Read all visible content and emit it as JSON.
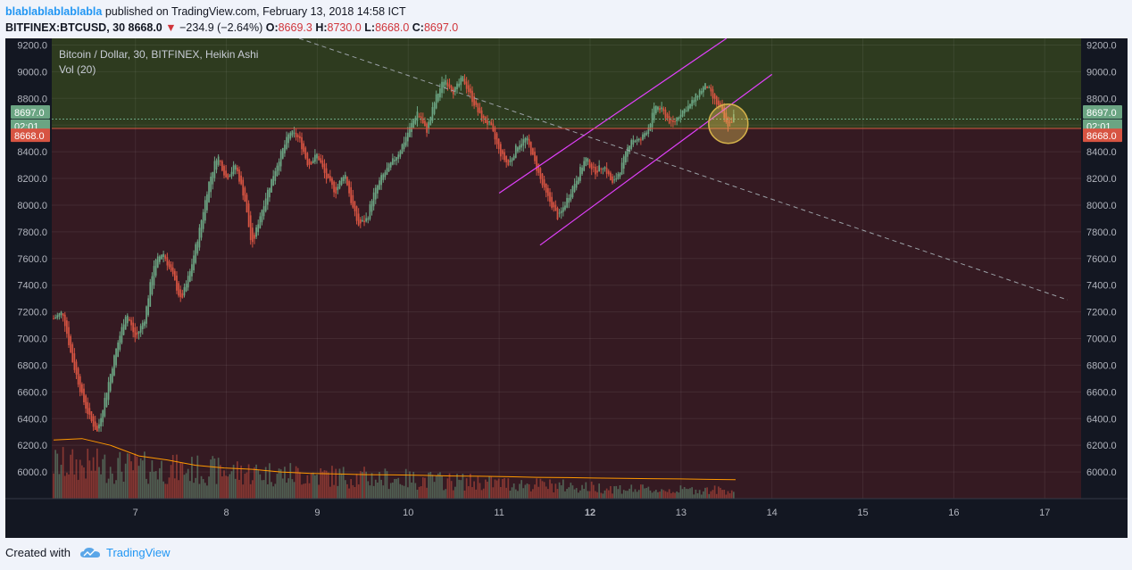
{
  "header": {
    "author": "blablablablablabla",
    "published_text": " published on TradingView.com, February 13, 2018 14:58 ICT",
    "symbol": "BITFINEX:BTCUSD, 30",
    "last": "8668.0",
    "change": "−234.9 (−2.64%)",
    "o_label": "O:",
    "o_value": "8669.3",
    "h_label": "H:",
    "h_value": "8730.0",
    "l_label": "L:",
    "l_value": "8668.0",
    "c_label": "C:",
    "c_value": "8697.0"
  },
  "legend": {
    "title": "Bitcoin / Dollar, 30, BITFINEX, Heikin Ashi",
    "volume": "Vol (20)"
  },
  "footer": {
    "created": "Created with",
    "brand": "TradingView"
  },
  "colors": {
    "up": "#6ba583",
    "down": "#d75442",
    "channel": "#e040fb",
    "trend": "#9aa0a6",
    "zone_top": "#2e3b1f",
    "zone_bottom": "#351a22",
    "vol_ma": "#ff9800"
  },
  "chart_data": {
    "type": "candlestick",
    "style": "Heikin Ashi",
    "ylim": [
      5800,
      9250
    ],
    "xlim": [
      6.08,
      17.4
    ],
    "y_ticks": [
      "9200.0",
      "9000.0",
      "8800.0",
      "8600.0",
      "8400.0",
      "8200.0",
      "8000.0",
      "7800.0",
      "7600.0",
      "7400.0",
      "7200.0",
      "7000.0",
      "6800.0",
      "6600.0",
      "6400.0",
      "6200.0",
      "6000.0"
    ],
    "x_ticks": [
      "7",
      "8",
      "9",
      "10",
      "11",
      "12",
      "13",
      "14",
      "15",
      "16",
      "17"
    ],
    "last_price_label": "8697.0",
    "countdown_label": "02:01",
    "low_line_label": "8668.0",
    "level_line": 8575,
    "price_line": 8645,
    "price_path": [
      [
        6.1,
        7150
      ],
      [
        6.2,
        7200
      ],
      [
        6.3,
        6850
      ],
      [
        6.42,
        6550
      ],
      [
        6.5,
        6400
      ],
      [
        6.58,
        6300
      ],
      [
        6.68,
        6600
      ],
      [
        6.78,
        6900
      ],
      [
        6.9,
        7200
      ],
      [
        7.0,
        7000
      ],
      [
        7.1,
        7150
      ],
      [
        7.2,
        7550
      ],
      [
        7.3,
        7650
      ],
      [
        7.42,
        7450
      ],
      [
        7.5,
        7280
      ],
      [
        7.6,
        7500
      ],
      [
        7.7,
        7800
      ],
      [
        7.8,
        8150
      ],
      [
        7.9,
        8380
      ],
      [
        8.0,
        8200
      ],
      [
        8.1,
        8300
      ],
      [
        8.2,
        8050
      ],
      [
        8.28,
        7680
      ],
      [
        8.36,
        7900
      ],
      [
        8.45,
        8100
      ],
      [
        8.58,
        8350
      ],
      [
        8.7,
        8550
      ],
      [
        8.8,
        8500
      ],
      [
        8.9,
        8300
      ],
      [
        9.0,
        8380
      ],
      [
        9.1,
        8200
      ],
      [
        9.2,
        8100
      ],
      [
        9.3,
        8250
      ],
      [
        9.38,
        8000
      ],
      [
        9.45,
        7850
      ],
      [
        9.55,
        7900
      ],
      [
        9.6,
        8050
      ],
      [
        9.7,
        8200
      ],
      [
        9.8,
        8300
      ],
      [
        9.9,
        8400
      ],
      [
        10.0,
        8550
      ],
      [
        10.1,
        8700
      ],
      [
        10.2,
        8550
      ],
      [
        10.3,
        8800
      ],
      [
        10.4,
        8950
      ],
      [
        10.5,
        8850
      ],
      [
        10.6,
        8950
      ],
      [
        10.7,
        8800
      ],
      [
        10.8,
        8650
      ],
      [
        10.9,
        8600
      ],
      [
        11.0,
        8400
      ],
      [
        11.1,
        8300
      ],
      [
        11.2,
        8450
      ],
      [
        11.3,
        8500
      ],
      [
        11.4,
        8300
      ],
      [
        11.5,
        8100
      ],
      [
        11.58,
        8000
      ],
      [
        11.65,
        7900
      ],
      [
        11.75,
        8050
      ],
      [
        11.85,
        8200
      ],
      [
        11.95,
        8350
      ],
      [
        12.05,
        8250
      ],
      [
        12.15,
        8300
      ],
      [
        12.25,
        8150
      ],
      [
        12.35,
        8300
      ],
      [
        12.45,
        8500
      ],
      [
        12.55,
        8480
      ],
      [
        12.65,
        8600
      ],
      [
        12.72,
        8750
      ],
      [
        12.8,
        8700
      ],
      [
        12.9,
        8600
      ],
      [
        13.0,
        8700
      ],
      [
        13.1,
        8750
      ],
      [
        13.2,
        8850
      ],
      [
        13.28,
        8900
      ],
      [
        13.35,
        8800
      ],
      [
        13.45,
        8700
      ],
      [
        13.5,
        8600
      ],
      [
        13.55,
        8620
      ],
      [
        13.6,
        8697
      ]
    ],
    "volume_ma": [
      6240,
      6250,
      6200,
      6120,
      6090,
      6050,
      6030,
      6020,
      6000,
      5990,
      5985,
      5980,
      5978,
      5975,
      5970,
      5968,
      5965,
      5960,
      5958,
      5955,
      5952,
      5950,
      5948,
      5945,
      5942
    ],
    "channel_upper": [
      [
        11.0,
        8090
      ],
      [
        13.5,
        9250
      ]
    ],
    "channel_lower": [
      [
        11.45,
        7700
      ],
      [
        14.0,
        8980
      ]
    ],
    "trend_line": [
      [
        8.8,
        9250
      ],
      [
        17.25,
        7290
      ]
    ],
    "highlight": {
      "x": 13.52,
      "y": 8610
    }
  }
}
